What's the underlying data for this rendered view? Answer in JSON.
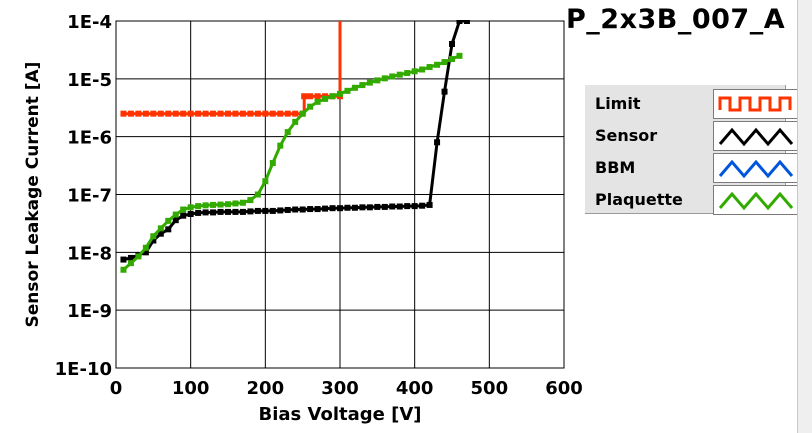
{
  "chart_data": {
    "type": "scatter",
    "title": "P_2x3B_007_A",
    "xlabel": "Bias Voltage [V]",
    "ylabel": "Sensor Leakage Current [A]",
    "xlim": [
      0,
      600
    ],
    "ylim": [
      1e-10,
      0.0001
    ],
    "yscale": "log",
    "grid": true,
    "legend": "right",
    "xticks": [
      0,
      100,
      200,
      300,
      400,
      500,
      600
    ],
    "xtick_labels": [
      "0",
      "100",
      "200",
      "300",
      "400",
      "500",
      "600"
    ],
    "yticks": [
      1e-10,
      1e-09,
      1e-08,
      1e-07,
      1e-06,
      1e-05,
      0.0001
    ],
    "ytick_labels": [
      "1E-10",
      "1E-9",
      "1E-8",
      "1E-7",
      "1E-6",
      "1E-5",
      "1E-4"
    ],
    "series": [
      {
        "name": "Limit",
        "color": "#ff3300",
        "style": "step",
        "x": [
          10,
          20,
          30,
          40,
          50,
          60,
          70,
          80,
          90,
          100,
          110,
          120,
          130,
          140,
          150,
          160,
          170,
          180,
          190,
          200,
          210,
          220,
          230,
          240,
          250,
          252,
          260,
          270,
          280,
          290,
          300,
          300
        ],
        "y": [
          2.5e-06,
          2.5e-06,
          2.5e-06,
          2.5e-06,
          2.5e-06,
          2.5e-06,
          2.5e-06,
          2.5e-06,
          2.5e-06,
          2.5e-06,
          2.5e-06,
          2.5e-06,
          2.5e-06,
          2.5e-06,
          2.5e-06,
          2.5e-06,
          2.5e-06,
          2.5e-06,
          2.5e-06,
          2.5e-06,
          2.5e-06,
          2.5e-06,
          2.5e-06,
          2.5e-06,
          2.5e-06,
          5e-06,
          5e-06,
          5e-06,
          5e-06,
          5e-06,
          5e-06,
          0.0001
        ]
      },
      {
        "name": "Sensor",
        "color": "#000000",
        "x": [
          10,
          20,
          30,
          40,
          50,
          60,
          70,
          80,
          90,
          100,
          110,
          120,
          130,
          140,
          150,
          160,
          170,
          180,
          190,
          200,
          210,
          220,
          230,
          240,
          250,
          260,
          270,
          280,
          290,
          300,
          310,
          320,
          330,
          340,
          350,
          360,
          370,
          380,
          390,
          400,
          410,
          420,
          430,
          440,
          450,
          460,
          470
        ],
        "y": [
          7.5e-09,
          8e-09,
          9e-09,
          1e-08,
          1.6e-08,
          2.1e-08,
          2.5e-08,
          3.6e-08,
          4.3e-08,
          4.6e-08,
          4.8e-08,
          4.9e-08,
          4.9e-08,
          5e-08,
          5e-08,
          5e-08,
          5e-08,
          5.1e-08,
          5.2e-08,
          5.2e-08,
          5.2e-08,
          5.3e-08,
          5.4e-08,
          5.5e-08,
          5.5e-08,
          5.6e-08,
          5.6e-08,
          5.7e-08,
          5.8e-08,
          5.8e-08,
          5.9e-08,
          5.9e-08,
          6e-08,
          6e-08,
          6.1e-08,
          6.1e-08,
          6.2e-08,
          6.2e-08,
          6.3e-08,
          6.3e-08,
          6.4e-08,
          6.6e-08,
          8e-07,
          6e-06,
          4e-05,
          0.0001,
          0.0001
        ]
      },
      {
        "name": "BBM",
        "color": "#0055dd",
        "x": [],
        "y": []
      },
      {
        "name": "Plaquette",
        "color": "#33aa00",
        "x": [
          10,
          20,
          30,
          40,
          50,
          60,
          70,
          80,
          90,
          100,
          110,
          120,
          130,
          140,
          150,
          160,
          170,
          180,
          190,
          200,
          210,
          220,
          230,
          240,
          250,
          260,
          270,
          280,
          290,
          300,
          310,
          320,
          330,
          340,
          350,
          360,
          370,
          380,
          390,
          400,
          410,
          420,
          430,
          440,
          450,
          460
        ],
        "y": [
          5e-09,
          6.5e-09,
          8.5e-09,
          1.2e-08,
          1.9e-08,
          2.6e-08,
          3.5e-08,
          4.5e-08,
          5.5e-08,
          6e-08,
          6.3e-08,
          6.5e-08,
          6.6e-08,
          6.7e-08,
          6.8e-08,
          7e-08,
          7.2e-08,
          8e-08,
          1e-07,
          1.7e-07,
          3.5e-07,
          7e-07,
          1.2e-06,
          1.8e-06,
          2.5e-06,
          3.3e-06,
          4e-06,
          4.5e-06,
          5e-06,
          5.5e-06,
          6.2e-06,
          7e-06,
          7.8e-06,
          8.6e-06,
          9.4e-06,
          1.02e-05,
          1.1e-05,
          1.18e-05,
          1.26e-05,
          1.35e-05,
          1.45e-05,
          1.6e-05,
          1.75e-05,
          1.95e-05,
          2.2e-05,
          2.5e-05
        ]
      }
    ]
  }
}
